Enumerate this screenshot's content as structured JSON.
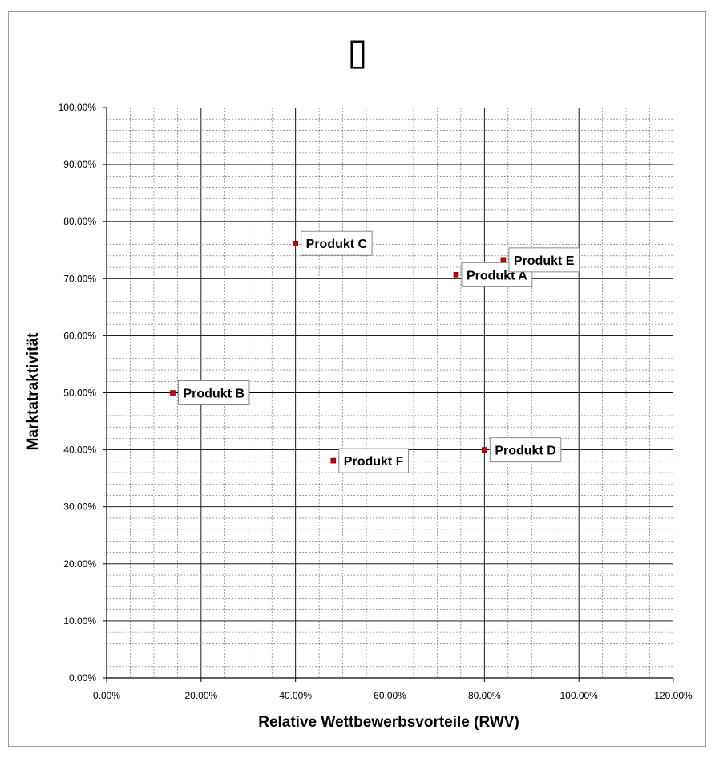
{
  "chart_data": {
    "type": "scatter",
    "title": "",
    "title_glyph": "▯",
    "xlabel": "Relative Wettbewerbsvorteile (RWV)",
    "ylabel": "Marktatraktivität",
    "xlim": [
      0,
      1.2
    ],
    "ylim": [
      0,
      1.0
    ],
    "x_ticks": [
      "0.00%",
      "20.00%",
      "40.00%",
      "60.00%",
      "80.00%",
      "100.00%",
      "120.00%"
    ],
    "y_ticks": [
      "0.00%",
      "10.00%",
      "20.00%",
      "30.00%",
      "40.00%",
      "50.00%",
      "60.00%",
      "70.00%",
      "80.00%",
      "90.00%",
      "100.00%"
    ],
    "grid": true,
    "marker_color": "#cc0000",
    "points": [
      {
        "label": "Produkt A",
        "x": 0.74,
        "y": 0.707
      },
      {
        "label": "Produkt B",
        "x": 0.14,
        "y": 0.5
      },
      {
        "label": "Produkt C",
        "x": 0.4,
        "y": 0.762
      },
      {
        "label": "Produkt D",
        "x": 0.8,
        "y": 0.4
      },
      {
        "label": "Produkt E",
        "x": 0.84,
        "y": 0.733
      },
      {
        "label": "Produkt F",
        "x": 0.48,
        "y": 0.381
      }
    ]
  }
}
